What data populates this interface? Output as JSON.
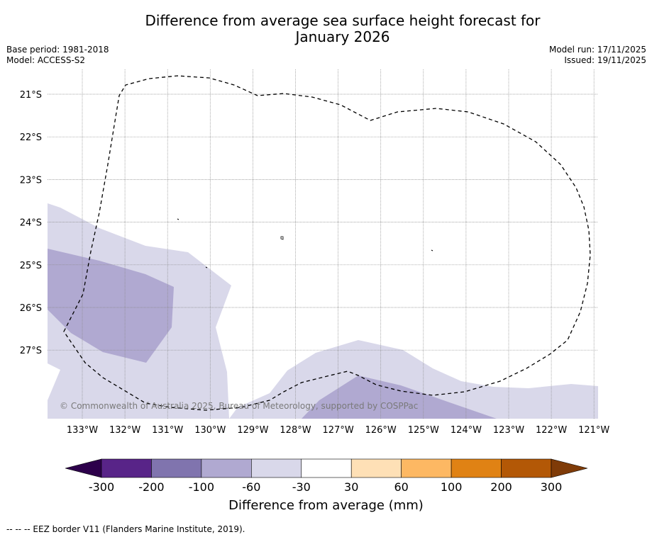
{
  "title": {
    "line1": "Difference from average sea surface height forecast for",
    "line2": "January 2026"
  },
  "meta_left": {
    "base_period": "Base period: 1981-2018",
    "model": "Model: ACCESS-S2"
  },
  "meta_right": {
    "model_run": "Model run: 17/11/2025",
    "issued": "Issued: 19/11/2025"
  },
  "map": {
    "lat_labels": [
      "21°S",
      "22°S",
      "23°S",
      "24°S",
      "25°S",
      "26°S",
      "27°S"
    ],
    "lon_labels": [
      "133°W",
      "132°W",
      "131°W",
      "130°W",
      "129°W",
      "128°W",
      "127°W",
      "126°W",
      "125°W",
      "124°W",
      "123°W",
      "122°W",
      "121°W"
    ],
    "copyright": "© Commonwealth of Australia 2025, Bureau of Meteorology, supported by COSPPac",
    "border_name": "EEZ border"
  },
  "colorbar": {
    "ticks": [
      "-300",
      "-200",
      "-100",
      "-60",
      "-30",
      "30",
      "60",
      "100",
      "200",
      "300"
    ],
    "colors": [
      "#582488",
      "#8074ae",
      "#b0a9d1",
      "#d9d8ea",
      "#ffffff",
      "#fee0b6",
      "#fdb863",
      "#e08214",
      "#b35806"
    ],
    "under_color": "#2d004b",
    "over_color": "#7f3b08",
    "label": "Difference from average (mm)"
  },
  "footer": "--  --  -- EEZ border V11 (Flanders Marine Institute, 2019)."
}
